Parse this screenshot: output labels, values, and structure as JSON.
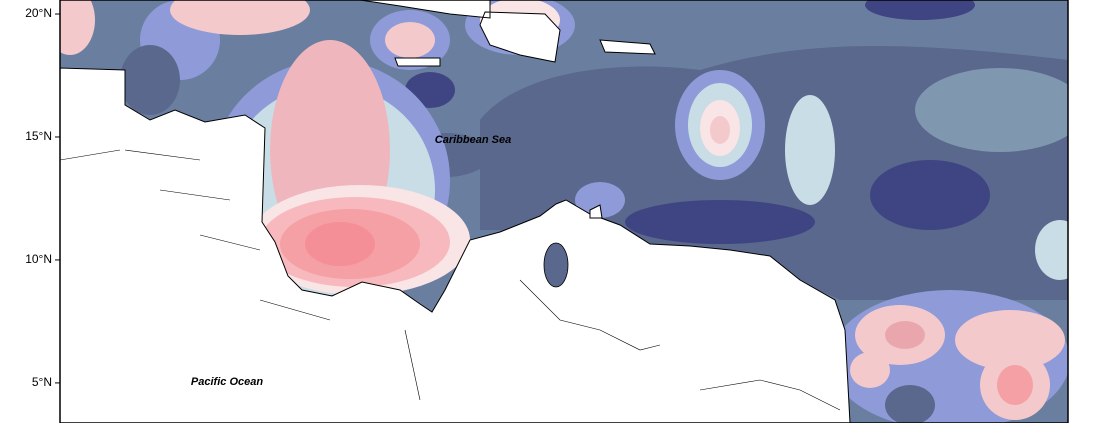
{
  "map": {
    "yaxis": {
      "ylim": [
        3.37,
        20.57
      ],
      "yticks": [
        {
          "value": 20,
          "label": "20°N"
        },
        {
          "value": 15,
          "label": "15°N"
        },
        {
          "value": 10,
          "label": "10°N"
        },
        {
          "value": 5,
          "label": "5°N"
        }
      ]
    },
    "labels": {
      "sea": "Caribbean Sea",
      "ocean": "Pacific Ocean"
    }
  }
}
